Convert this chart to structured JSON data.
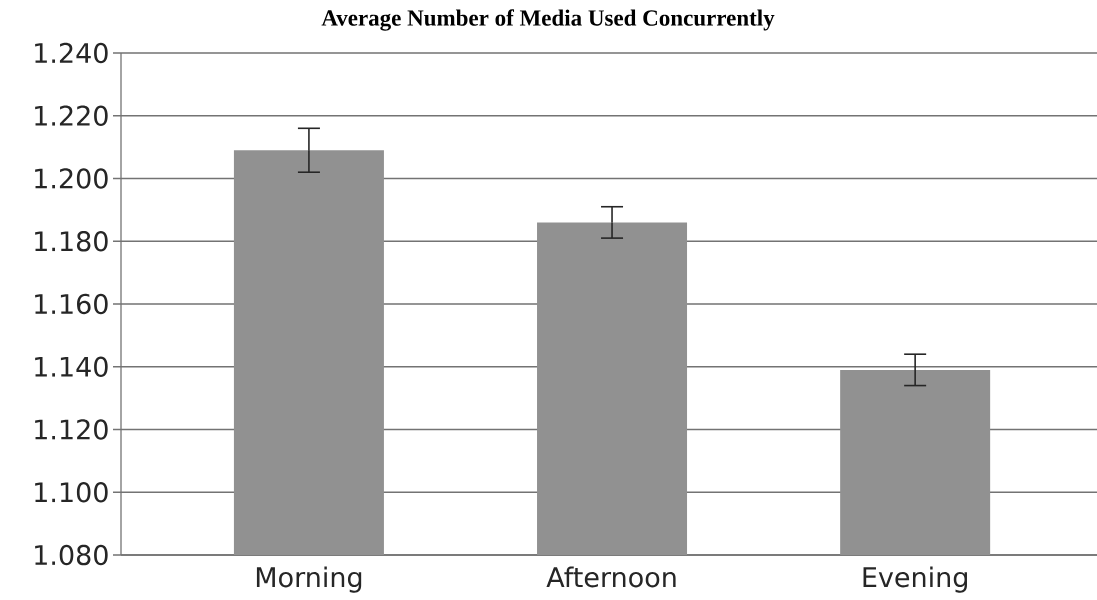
{
  "chart_data": {
    "type": "bar",
    "title": "Average Number of Media Used Concurrently",
    "categories": [
      "Morning",
      "Afternoon",
      "Evening"
    ],
    "values": [
      1.209,
      1.186,
      1.139
    ],
    "errors": [
      0.007,
      0.005,
      0.005
    ],
    "color": "#919191",
    "ylim": [
      1.08,
      1.24
    ],
    "yticks": [
      {
        "value": 1.08,
        "label": "1.080"
      },
      {
        "value": 1.1,
        "label": "1.100"
      },
      {
        "value": 1.12,
        "label": "1.120"
      },
      {
        "value": 1.14,
        "label": "1.140"
      },
      {
        "value": 1.16,
        "label": "1.160"
      },
      {
        "value": 1.18,
        "label": "1.180"
      },
      {
        "value": 1.2,
        "label": "1.200"
      },
      {
        "value": 1.22,
        "label": "1.220"
      },
      {
        "value": 1.24,
        "label": "1.240"
      }
    ],
    "grid": "y"
  }
}
